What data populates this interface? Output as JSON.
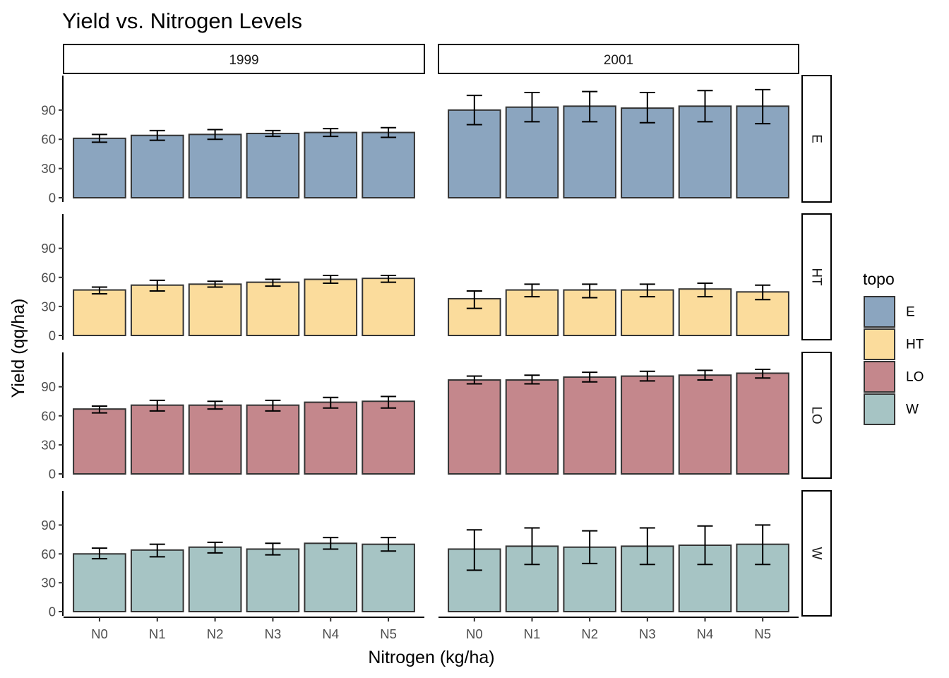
{
  "chart_data": {
    "type": "bar",
    "title": "Yield vs. Nitrogen Levels",
    "xlabel": "Nitrogen (kg/ha)",
    "ylabel": "Yield (qq/ha)",
    "categories": [
      "N0",
      "N1",
      "N2",
      "N3",
      "N4",
      "N5"
    ],
    "y_ticks": [
      0,
      30,
      60,
      90
    ],
    "ylim": [
      0,
      116
    ],
    "grid": false,
    "legend_position": "right",
    "facet_columns": [
      "1999",
      "2001"
    ],
    "facet_rows": [
      "E",
      "HT",
      "LO",
      "W"
    ],
    "legend": {
      "title": "topo",
      "entries": [
        {
          "label": "E",
          "color": "#8ba5bf"
        },
        {
          "label": "HT",
          "color": "#fbdc9c"
        },
        {
          "label": "LO",
          "color": "#c4878c"
        },
        {
          "label": "W",
          "color": "#a6c4c4"
        }
      ]
    },
    "series": [
      {
        "topo": "E",
        "year": "1999",
        "values": [
          61,
          64,
          65,
          66,
          67,
          67
        ],
        "error_low": [
          57,
          59,
          60,
          63,
          63,
          62
        ],
        "error_high": [
          65,
          69,
          70,
          69,
          71,
          72
        ]
      },
      {
        "topo": "E",
        "year": "2001",
        "values": [
          90,
          93,
          94,
          92,
          94,
          94
        ],
        "error_low": [
          75,
          78,
          78,
          77,
          78,
          76
        ],
        "error_high": [
          105,
          108,
          109,
          108,
          110,
          111
        ]
      },
      {
        "topo": "HT",
        "year": "1999",
        "values": [
          47,
          52,
          53,
          55,
          58,
          59
        ],
        "error_low": [
          43,
          46,
          50,
          51,
          54,
          55
        ],
        "error_high": [
          50,
          57,
          56,
          58,
          62,
          62
        ]
      },
      {
        "topo": "HT",
        "year": "2001",
        "values": [
          38,
          47,
          47,
          47,
          48,
          45
        ],
        "error_low": [
          28,
          40,
          39,
          40,
          40,
          37
        ],
        "error_high": [
          46,
          53,
          53,
          53,
          54,
          52
        ]
      },
      {
        "topo": "LO",
        "year": "1999",
        "values": [
          67,
          71,
          71,
          71,
          74,
          75
        ],
        "error_low": [
          63,
          65,
          67,
          65,
          68,
          68
        ],
        "error_high": [
          70,
          76,
          75,
          76,
          79,
          80
        ]
      },
      {
        "topo": "LO",
        "year": "2001",
        "values": [
          97,
          97,
          100,
          101,
          102,
          104
        ],
        "error_low": [
          93,
          93,
          95,
          96,
          97,
          99
        ],
        "error_high": [
          101,
          102,
          105,
          106,
          107,
          108
        ]
      },
      {
        "topo": "W",
        "year": "1999",
        "values": [
          60,
          64,
          67,
          65,
          71,
          70
        ],
        "error_low": [
          55,
          57,
          61,
          59,
          65,
          63
        ],
        "error_high": [
          66,
          70,
          72,
          71,
          77,
          77
        ]
      },
      {
        "topo": "W",
        "year": "2001",
        "values": [
          65,
          68,
          67,
          68,
          69,
          70
        ],
        "error_low": [
          43,
          49,
          50,
          49,
          49,
          49
        ],
        "error_high": [
          85,
          87,
          84,
          87,
          89,
          90
        ]
      }
    ]
  }
}
